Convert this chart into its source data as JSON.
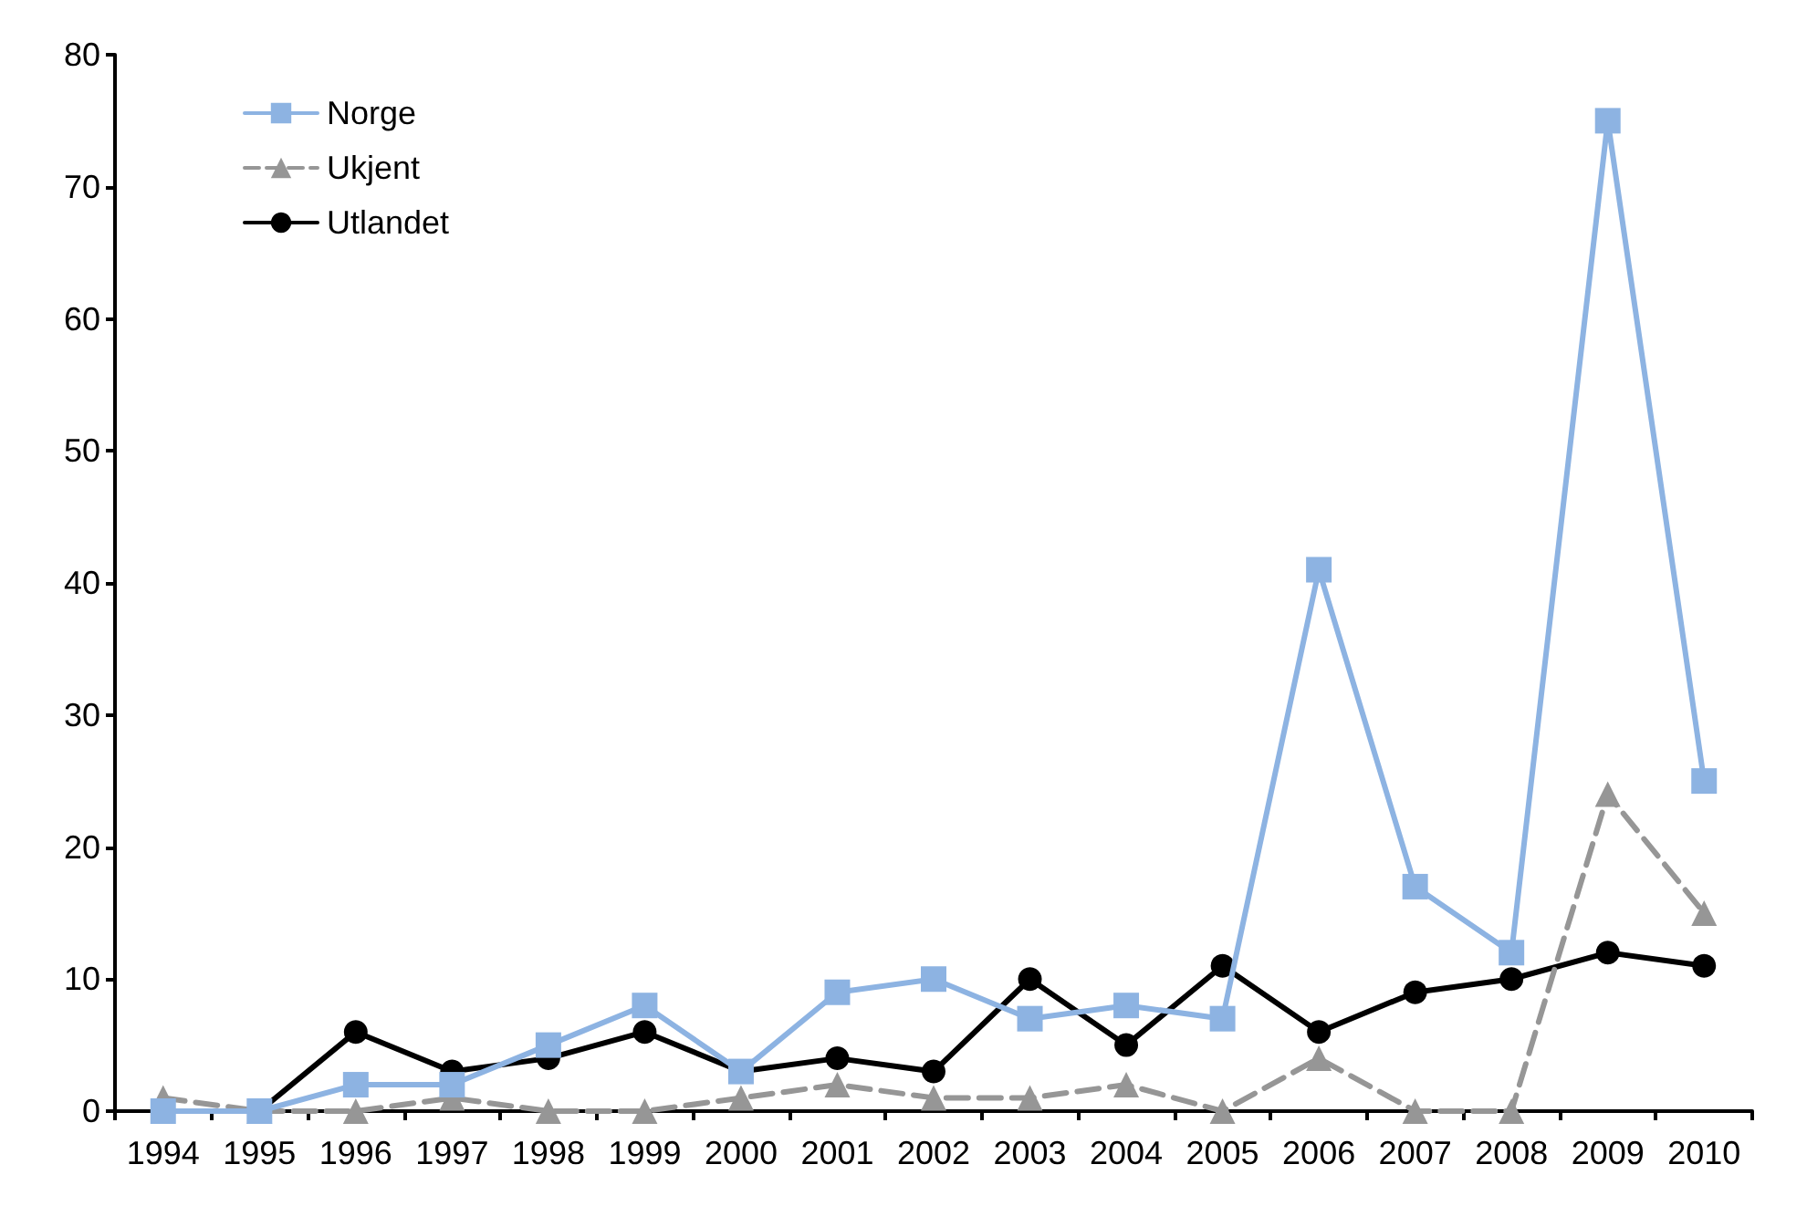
{
  "chart_data": {
    "type": "line",
    "categories": [
      "1994",
      "1995",
      "1996",
      "1997",
      "1998",
      "1999",
      "2000",
      "2001",
      "2002",
      "2003",
      "2004",
      "2005",
      "2006",
      "2007",
      "2008",
      "2009",
      "2010"
    ],
    "series": [
      {
        "name": "Norge",
        "color": "#8db3e2",
        "marker": "square",
        "line_style": "solid",
        "values": [
          0,
          0,
          2,
          2,
          5,
          8,
          3,
          9,
          10,
          7,
          8,
          7,
          41,
          17,
          12,
          75,
          25
        ]
      },
      {
        "name": "Ukjent",
        "color": "#969696",
        "marker": "triangle",
        "line_style": "dashed",
        "values": [
          1,
          0,
          0,
          1,
          0,
          0,
          1,
          2,
          1,
          1,
          2,
          0,
          4,
          0,
          0,
          24,
          15
        ]
      },
      {
        "name": "Utlandet",
        "color": "#000000",
        "marker": "circle",
        "line_style": "solid",
        "values": [
          0,
          0,
          6,
          3,
          4,
          6,
          3,
          4,
          3,
          10,
          5,
          11,
          6,
          9,
          10,
          12,
          11
        ]
      }
    ],
    "ylim": [
      0,
      80
    ],
    "yticks": [
      0,
      10,
      20,
      30,
      40,
      50,
      60,
      70,
      80
    ],
    "grid": false,
    "legend": "top left"
  }
}
